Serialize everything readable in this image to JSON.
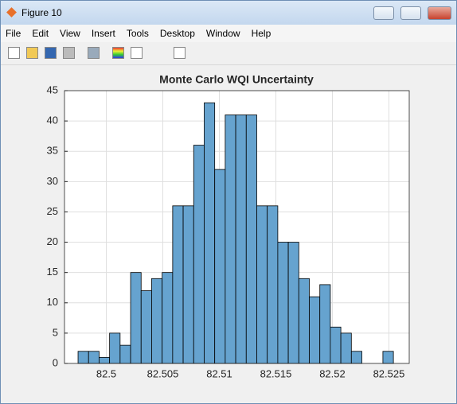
{
  "window": {
    "title": "Figure 10",
    "menu": [
      "File",
      "Edit",
      "View",
      "Insert",
      "Tools",
      "Desktop",
      "Window",
      "Help"
    ]
  },
  "chart_data": {
    "type": "histogram",
    "title": "Monte Carlo WQI Uncertainty",
    "bins": [
      82.4975,
      82.49843,
      82.49936,
      82.50029,
      82.50122,
      82.50215,
      82.50308,
      82.50401,
      82.50494,
      82.50587,
      82.5068,
      82.50773,
      82.50866,
      82.50959,
      82.51052,
      82.51145,
      82.51238,
      82.51331,
      82.51424,
      82.51517,
      82.5161,
      82.51703,
      82.51796,
      82.51889,
      82.51982,
      82.52075,
      82.52168,
      82.52261,
      82.52354,
      82.52447,
      82.5254
    ],
    "values": [
      2,
      2,
      1,
      5,
      3,
      15,
      12,
      14,
      15,
      26,
      26,
      36,
      43,
      32,
      41,
      41,
      41,
      26,
      26,
      20,
      20,
      14,
      11,
      13,
      6,
      5,
      2,
      0,
      0,
      2
    ],
    "color": "#66a3cf",
    "xlim": [
      82.4963,
      82.5268
    ],
    "xticks": [
      82.5,
      82.505,
      82.51,
      82.515,
      82.52,
      82.525
    ],
    "ylim": [
      0,
      45
    ],
    "yticks": [
      0,
      5,
      10,
      15,
      20,
      25,
      30,
      35,
      40,
      45
    ],
    "grid": true
  }
}
